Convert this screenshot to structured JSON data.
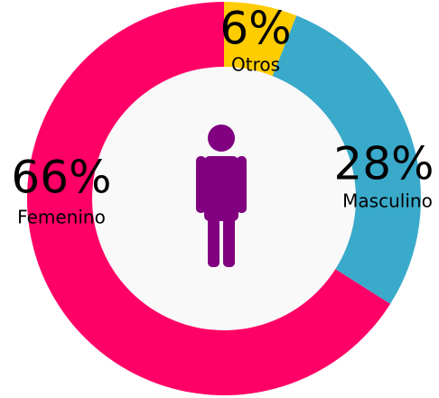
{
  "chart_data": {
    "type": "donut",
    "categories": [
      "Otros",
      "Masculino",
      "Femenino"
    ],
    "values": [
      6,
      28,
      66
    ],
    "value_labels": [
      "6%",
      "28%",
      "66%"
    ],
    "colors": [
      "#ffcc00",
      "#3aaacb",
      "#ff0066"
    ]
  }
}
